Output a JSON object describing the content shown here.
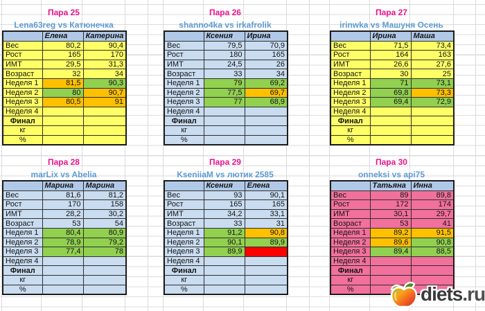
{
  "colors": {
    "yellow": "#FFFF66",
    "blue": "#C9DCF0",
    "pink": "#F2709C",
    "header": "#B1C9E8",
    "green": "#92D050",
    "orange": "#FFC000",
    "red": "#FF0000",
    "title_text": "#E8128C",
    "subtitle_text": "#5E9BD3"
  },
  "logo": {
    "site_text": "diets",
    "domain_text": ".ru",
    "icon": "apple-icon"
  },
  "tables": [
    {
      "title": "Пара 25",
      "subtitle": "Lena63reg vs Катюнечка",
      "theme": "yellow",
      "participants": [
        "Елена",
        "Катерина"
      ],
      "rows": [
        {
          "label": "Вес",
          "v1": "80,2",
          "v2": "90,4"
        },
        {
          "label": "Рост",
          "v1": "165",
          "v2": "170"
        },
        {
          "label": "ИМТ",
          "v1": "29,5",
          "v2": "31,3"
        },
        {
          "label": "Возраст",
          "v1": "32",
          "v2": "34"
        },
        {
          "label": "Неделя 1",
          "v1": "81,5",
          "v2": "90,3",
          "f1": "orange",
          "f2": "green"
        },
        {
          "label": "Неделя 2",
          "v1": "80",
          "v2": "90,7",
          "f1": "green",
          "f2": "orange"
        },
        {
          "label": "Неделя 3",
          "v1": "80,5",
          "v2": "91",
          "f1": "orange",
          "f2": "orange"
        },
        {
          "label": "Неделя 4",
          "v1": "",
          "v2": ""
        },
        {
          "label": "Финал",
          "v1": "",
          "v2": "",
          "style": "final"
        },
        {
          "label": "кг",
          "v1": "",
          "v2": "",
          "style": "center"
        },
        {
          "label": "%",
          "v1": "",
          "v2": "",
          "style": "center"
        }
      ]
    },
    {
      "title": "Пара 26",
      "subtitle": "shanno4ka vs irkafrolik",
      "theme": "blue",
      "participants": [
        "Ксения",
        "Ирина"
      ],
      "rows": [
        {
          "label": "Вес",
          "v1": "79,5",
          "v2": "70,9"
        },
        {
          "label": "Рост",
          "v1": "180",
          "v2": "165"
        },
        {
          "label": "ИМТ",
          "v1": "24,5",
          "v2": "26"
        },
        {
          "label": "Возраст",
          "v1": "33",
          "v2": "34"
        },
        {
          "label": "Неделя 1",
          "v1": "79",
          "v2": "69,2",
          "f1": "green",
          "f2": "green"
        },
        {
          "label": "Неделя 2",
          "v1": "77,5",
          "v2": "69,7",
          "f1": "green",
          "f2": "orange"
        },
        {
          "label": "Неделя 3",
          "v1": "77",
          "v2": "68,9",
          "f1": "green",
          "f2": "green"
        },
        {
          "label": "Неделя 4",
          "v1": "",
          "v2": ""
        },
        {
          "label": "Финал",
          "v1": "",
          "v2": "",
          "style": "final"
        },
        {
          "label": "кг",
          "v1": "",
          "v2": "",
          "style": "center"
        },
        {
          "label": "%",
          "v1": "",
          "v2": "",
          "style": "center"
        }
      ]
    },
    {
      "title": "Пара 27",
      "subtitle": "irinwka vs Машуня Осень",
      "theme": "yellow",
      "participants": [
        "Ирина",
        "Маша"
      ],
      "rows": [
        {
          "label": "Вес",
          "v1": "71,5",
          "v2": "73,4"
        },
        {
          "label": "Рост",
          "v1": "164",
          "v2": "163"
        },
        {
          "label": "ИМТ",
          "v1": "26,6",
          "v2": "27,6"
        },
        {
          "label": "Возраст",
          "v1": "30",
          "v2": "25"
        },
        {
          "label": "Неделя 1",
          "v1": "71",
          "v2": "73,1",
          "f1": "green",
          "f2": "green"
        },
        {
          "label": "Неделя 2",
          "v1": "69,8",
          "v2": "73,3",
          "f1": "green",
          "f2": "orange"
        },
        {
          "label": "Неделя 3",
          "v1": "69,4",
          "v2": "72,9",
          "f1": "green",
          "f2": "green"
        },
        {
          "label": "Неделя 4",
          "v1": "",
          "v2": ""
        },
        {
          "label": "Финал",
          "v1": "",
          "v2": "",
          "style": "final"
        },
        {
          "label": "кг",
          "v1": "",
          "v2": "",
          "style": "center"
        },
        {
          "label": "%",
          "v1": "",
          "v2": "",
          "style": "center"
        }
      ]
    },
    {
      "title": "Пара 28",
      "subtitle": "marLix vs Abelia",
      "theme": "blue",
      "participants": [
        "Марина",
        "Марина"
      ],
      "rows": [
        {
          "label": "Вес",
          "v1": "81,6",
          "v2": "81,2"
        },
        {
          "label": "Рост",
          "v1": "170",
          "v2": "158"
        },
        {
          "label": "ИМТ",
          "v1": "28,2",
          "v2": "30,2"
        },
        {
          "label": "Возраст",
          "v1": "53",
          "v2": "54"
        },
        {
          "label": "Неделя 1",
          "v1": "80,4",
          "v2": "80,9",
          "f1": "green",
          "f2": "green"
        },
        {
          "label": "Неделя 2",
          "v1": "78,9",
          "v2": "79,2",
          "f1": "green",
          "f2": "green"
        },
        {
          "label": "Неделя 3",
          "v1": "77,4",
          "v2": "78",
          "f1": "green",
          "f2": "green"
        },
        {
          "label": "Неделя 4",
          "v1": "",
          "v2": ""
        },
        {
          "label": "Финал",
          "v1": "",
          "v2": "",
          "style": "final"
        },
        {
          "label": "кг",
          "v1": "",
          "v2": "",
          "style": "center"
        },
        {
          "label": "%",
          "v1": "",
          "v2": "",
          "style": "center"
        }
      ]
    },
    {
      "title": "Пара 29",
      "subtitle": "KseniiaM vs лютик 2585",
      "theme": "blue",
      "participants": [
        "Ксения",
        "Елена"
      ],
      "rows": [
        {
          "label": "Вес",
          "v1": "93",
          "v2": "90,1"
        },
        {
          "label": "Рост",
          "v1": "165",
          "v2": "165"
        },
        {
          "label": "ИМТ",
          "v1": "34,2",
          "v2": "33,1"
        },
        {
          "label": "Возраст",
          "v1": "33",
          "v2": "31"
        },
        {
          "label": "Неделя 1",
          "v1": "91,2",
          "v2": "90,8",
          "f1": "green",
          "f2": "orange"
        },
        {
          "label": "Неделя 2",
          "v1": "90,1",
          "v2": "89,9",
          "f1": "green",
          "f2": "green"
        },
        {
          "label": "Неделя 3",
          "v1": "89,9",
          "v2": "",
          "f1": "green",
          "f2": "red"
        },
        {
          "label": "Неделя 4",
          "v1": "",
          "v2": ""
        },
        {
          "label": "Финал",
          "v1": "",
          "v2": "",
          "style": "final"
        },
        {
          "label": "кг",
          "v1": "",
          "v2": "",
          "style": "center"
        },
        {
          "label": "%",
          "v1": "",
          "v2": "",
          "style": "center"
        }
      ]
    },
    {
      "title": "Пара 30",
      "subtitle": "onneksi  vs api75",
      "theme": "pink",
      "participants": [
        "Татьяна",
        "Инна"
      ],
      "rows": [
        {
          "label": "Вес",
          "v1": "89",
          "v2": "89,8"
        },
        {
          "label": "Рост",
          "v1": "172",
          "v2": "174"
        },
        {
          "label": "ИМТ",
          "v1": "30,1",
          "v2": "29,7"
        },
        {
          "label": "Возраст",
          "v1": "53",
          "v2": "41"
        },
        {
          "label": "Неделя 1",
          "v1": "89,2",
          "v2": "91,5",
          "f1": "orange",
          "f2": "orange"
        },
        {
          "label": "Неделя 2",
          "v1": "89,6",
          "v2": "90,8",
          "f1": "orange",
          "f2": "green"
        },
        {
          "label": "Неделя 3",
          "v1": "89,4",
          "v2": "88,5",
          "f1": "green",
          "f2": "green"
        },
        {
          "label": "Неделя 4",
          "v1": "",
          "v2": ""
        },
        {
          "label": "Финал",
          "v1": "",
          "v2": "",
          "style": "final"
        },
        {
          "label": "кг",
          "v1": "",
          "v2": "",
          "style": "center"
        },
        {
          "label": "%",
          "v1": "",
          "v2": "",
          "style": "center"
        }
      ]
    }
  ]
}
